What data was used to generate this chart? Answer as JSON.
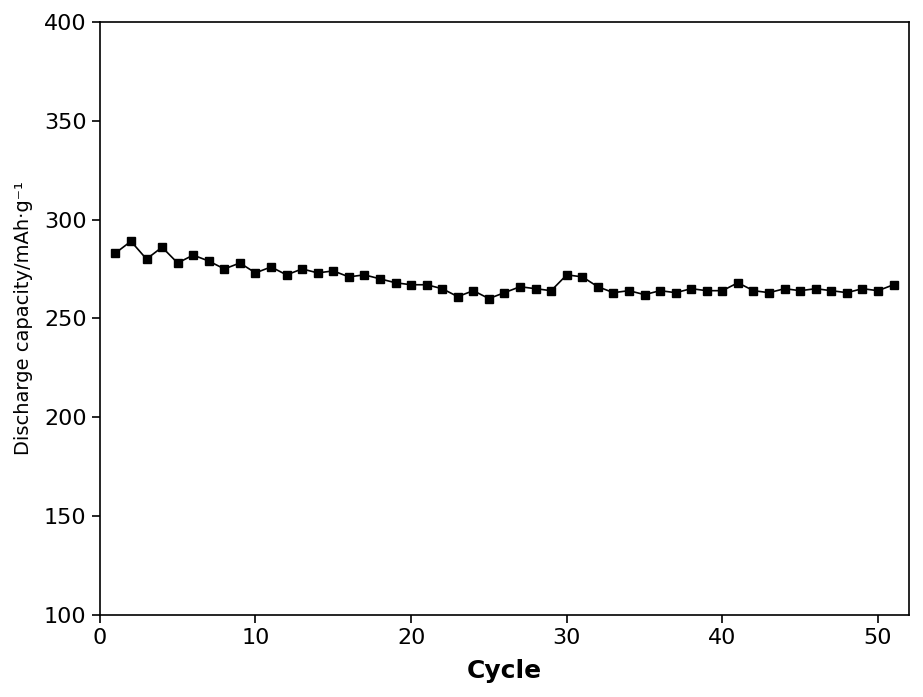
{
  "cycles": [
    1,
    2,
    3,
    4,
    5,
    6,
    7,
    8,
    9,
    10,
    11,
    12,
    13,
    14,
    15,
    16,
    17,
    18,
    19,
    20,
    21,
    22,
    23,
    24,
    25,
    26,
    27,
    28,
    29,
    30,
    31,
    32,
    33,
    34,
    35,
    36,
    37,
    38,
    39,
    40,
    41,
    42,
    43,
    44,
    45,
    46,
    47,
    48,
    49,
    50,
    51
  ],
  "capacity": [
    283,
    289,
    280,
    286,
    278,
    282,
    279,
    275,
    278,
    273,
    276,
    272,
    275,
    273,
    274,
    271,
    272,
    270,
    268,
    267,
    267,
    265,
    261,
    264,
    260,
    263,
    266,
    265,
    264,
    272,
    271,
    266,
    263,
    264,
    262,
    264,
    263,
    265,
    264,
    264,
    268,
    264,
    263,
    265,
    264,
    265,
    264,
    263,
    265,
    264,
    267
  ],
  "xlabel": "Cycle",
  "ylabel": "Discharge capacity/mAh·g⁻¹",
  "xlim": [
    0,
    52
  ],
  "ylim": [
    100,
    400
  ],
  "yticks": [
    100,
    150,
    200,
    250,
    300,
    350,
    400
  ],
  "xticks": [
    0,
    10,
    20,
    30,
    40,
    50
  ],
  "marker": "s",
  "marker_size": 6,
  "line_color": "#000000",
  "background_color": "#ffffff",
  "figure_bg": "#ffffff",
  "tick_labelsize": 16,
  "xlabel_fontsize": 18,
  "ylabel_fontsize": 14,
  "linewidth": 1.2
}
